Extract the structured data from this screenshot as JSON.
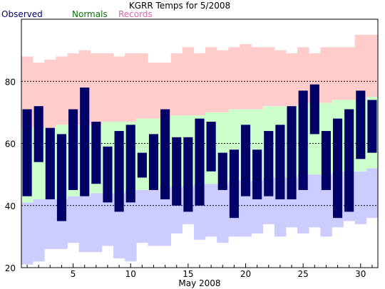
{
  "colors": {
    "observed": "#000066",
    "normals": "#ccffcc",
    "records": "#ffcccc",
    "lowband": "#ccccff",
    "legend_observed": "#000066",
    "legend_normals": "#007700",
    "legend_records": "#dd66aa"
  },
  "chart_data": {
    "type": "bar",
    "title": "KGRR Temps for 5/2008",
    "xlabel": "May 2008",
    "ylabel": "",
    "xlim": [
      0.5,
      31.5
    ],
    "ylim": [
      20,
      100
    ],
    "yticks": [
      20,
      40,
      60,
      80
    ],
    "xticks": [
      5,
      10,
      15,
      20,
      25,
      30
    ],
    "gridlines_y": [
      40,
      60,
      80
    ],
    "legend": [
      "Observed",
      "Normals",
      "Records"
    ],
    "legend_position": "top-left",
    "days": [
      1,
      2,
      3,
      4,
      5,
      6,
      7,
      8,
      9,
      10,
      11,
      12,
      13,
      14,
      15,
      16,
      17,
      18,
      19,
      20,
      21,
      22,
      23,
      24,
      25,
      26,
      27,
      28,
      29,
      30,
      31
    ],
    "series": [
      {
        "name": "Observed",
        "high": [
          71,
          72,
          65,
          63,
          71,
          78,
          67,
          59,
          64,
          66,
          57,
          63,
          71,
          62,
          62,
          68,
          67,
          57,
          58,
          66,
          58,
          64,
          66,
          72,
          77,
          79,
          64,
          68,
          71,
          77,
          74
        ],
        "low": [
          43,
          54,
          42,
          35,
          45,
          43,
          47,
          41,
          38,
          41,
          49,
          45,
          42,
          40,
          38,
          40,
          51,
          45,
          36,
          43,
          42,
          43,
          42,
          42,
          45,
          63,
          45,
          36,
          38,
          55,
          57
        ]
      },
      {
        "name": "Normals",
        "high": [
          65,
          65,
          65,
          66,
          66,
          66,
          66,
          67,
          67,
          67,
          68,
          68,
          68,
          69,
          69,
          69,
          70,
          70,
          71,
          71,
          71,
          72,
          72,
          72,
          73,
          73,
          73,
          74,
          74,
          74,
          75
        ],
        "low": [
          41,
          42,
          42,
          42,
          43,
          43,
          44,
          44,
          44,
          45,
          45,
          45,
          46,
          46,
          46,
          47,
          47,
          47,
          48,
          48,
          48,
          49,
          49,
          49,
          50,
          50,
          50,
          51,
          51,
          51,
          52
        ]
      },
      {
        "name": "Records",
        "high": [
          88,
          86,
          87,
          88,
          89,
          90,
          89,
          89,
          88,
          89,
          89,
          86,
          86,
          89,
          91,
          89,
          91,
          90,
          91,
          92,
          91,
          91,
          90,
          89,
          91,
          89,
          91,
          91,
          91,
          95,
          95
        ],
        "low": [
          21,
          22,
          26,
          26,
          28,
          25,
          25,
          27,
          23,
          22,
          28,
          27,
          27,
          31,
          34,
          29,
          30,
          28,
          30,
          30,
          31,
          34,
          30,
          33,
          31,
          33,
          30,
          33,
          35,
          34,
          36
        ]
      }
    ]
  }
}
